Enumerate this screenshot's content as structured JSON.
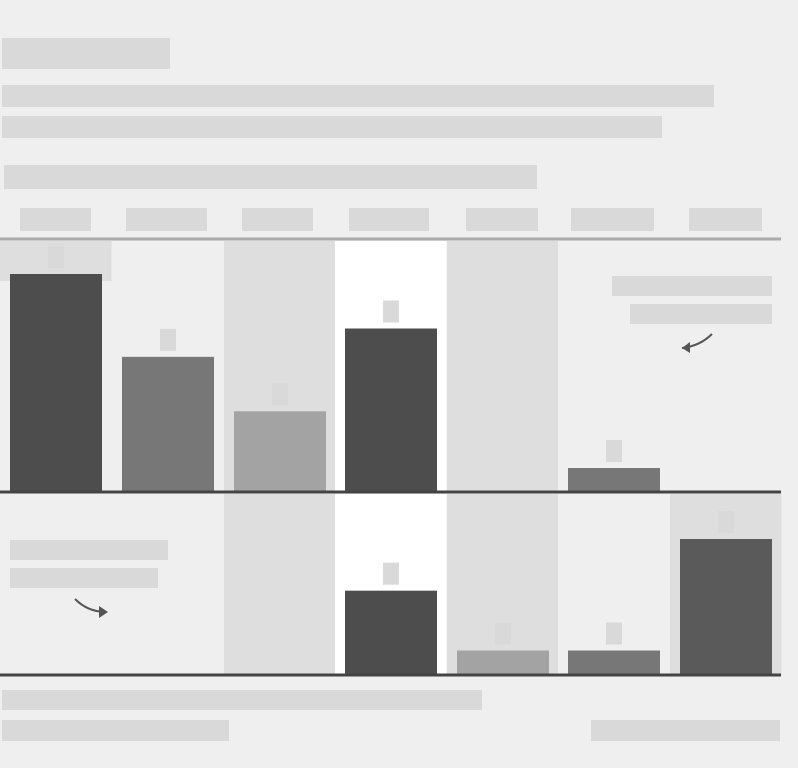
{
  "header": {
    "title": "",
    "subtitle_lines": [
      "",
      ""
    ],
    "chart_title": ""
  },
  "footer": {
    "note": "",
    "source": "",
    "credit": ""
  },
  "annotations": {
    "upper_right": [
      "",
      ""
    ],
    "lower_left": [
      "",
      ""
    ]
  },
  "colors": {
    "background": "#efefef",
    "placeholder_block": "#d9d9d9",
    "column_band_light": "#efefef",
    "column_band_mid": "#dedede",
    "column_band_white": "#ffffff",
    "bar_dark": "#4d4d4d",
    "bar_mid": "#777777",
    "bar_light": "#a3a3a3",
    "bar_darkgray": "#5a5a5a",
    "axis_line": "#444444",
    "top_rule": "#aaaaaa"
  },
  "chart_data": {
    "type": "bar",
    "layout": "small-multiples",
    "categories": [
      "",
      "",
      "",
      "",
      "",
      "",
      ""
    ],
    "series": [
      {
        "values": [
          100,
          62,
          37,
          75,
          null,
          11,
          null
        ]
      },
      {
        "values": [
          null,
          null,
          null,
          62,
          18,
          18,
          100
        ]
      }
    ],
    "ylim": [
      0,
      100
    ],
    "grid": false,
    "legend": "none"
  }
}
